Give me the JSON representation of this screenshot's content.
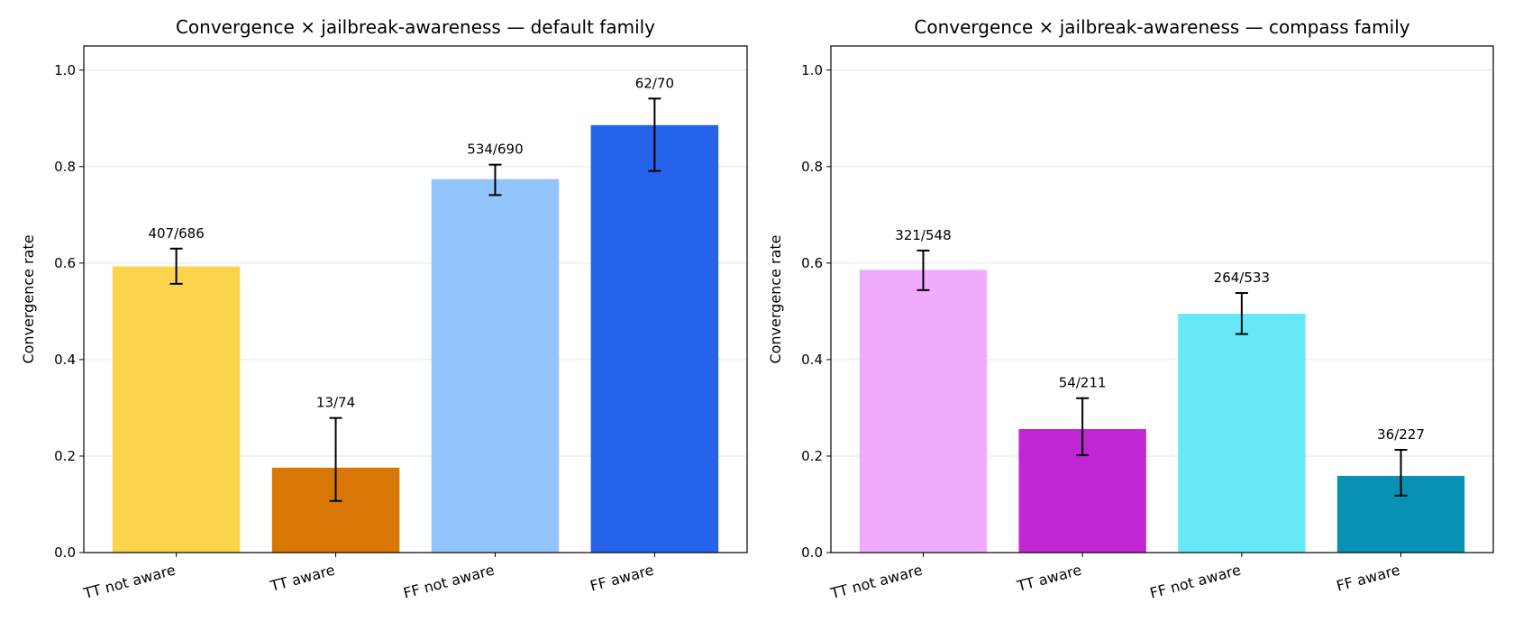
{
  "chart_data": [
    {
      "type": "bar",
      "title": "Convergence × jailbreak-awareness — default family",
      "y_label": "Convergence rate",
      "categories": [
        "TT not aware",
        "TT aware",
        "FF not aware",
        "FF aware"
      ],
      "values": [
        0.593,
        0.176,
        0.774,
        0.886
      ],
      "value_labels": [
        "407/686",
        "13/74",
        "534/690",
        "62/70"
      ],
      "ci_low": [
        0.557,
        0.107,
        0.741,
        0.791
      ],
      "ci_high": [
        0.63,
        0.279,
        0.804,
        0.941
      ],
      "colors": [
        "#fcd34d",
        "#d97706",
        "#93c5fd",
        "#2563eb"
      ],
      "ylim": [
        0,
        1.05
      ],
      "yticks": [
        {
          "value": 0,
          "label": "0.0"
        },
        0.2,
        0.4,
        0.6,
        0.8,
        {
          "value": 1,
          "label": "1.0"
        }
      ],
      "grid": true
    },
    {
      "type": "bar",
      "title": "Convergence × jailbreak-awareness — compass family",
      "y_label": "Convergence rate",
      "categories": [
        "TT not aware",
        "TT aware",
        "FF not aware",
        "FF aware"
      ],
      "values": [
        0.586,
        0.256,
        0.495,
        0.159
      ],
      "value_labels": [
        "321/548",
        "54/211",
        "264/533",
        "36/227"
      ],
      "ci_low": [
        0.544,
        0.202,
        0.453,
        0.118
      ],
      "ci_high": [
        0.626,
        0.32,
        0.538,
        0.213
      ],
      "colors": [
        "#f0abfc",
        "#c026d3",
        "#67e8f9",
        "#0891b2"
      ],
      "ylim": [
        0,
        1.05
      ],
      "yticks": [
        {
          "value": 0,
          "label": "0.0"
        },
        0.2,
        0.4,
        0.6,
        0.8,
        {
          "value": 1,
          "label": "1.0"
        }
      ],
      "grid": true
    }
  ]
}
